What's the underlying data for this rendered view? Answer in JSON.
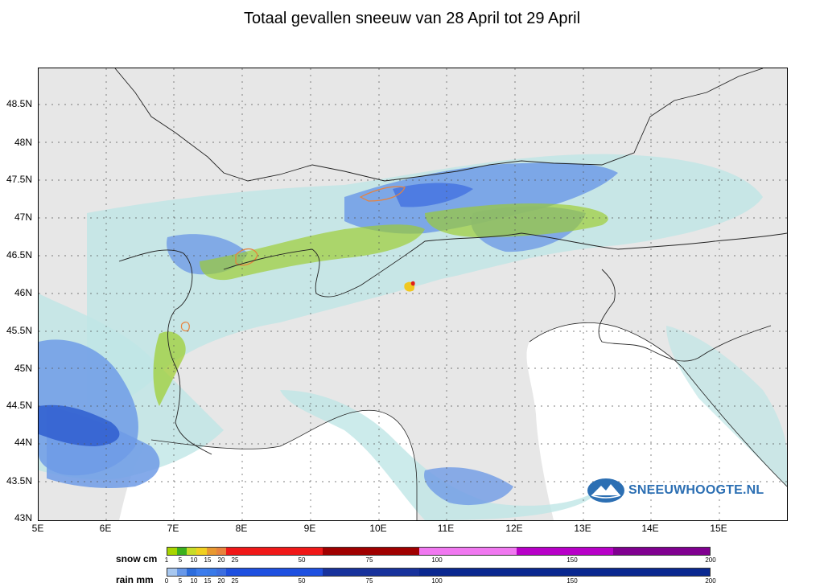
{
  "title": "Totaal gevallen sneeuw van 28 April tot 29 April",
  "latitude_labels": [
    "48.5N",
    "48N",
    "47.5N",
    "47N",
    "46.5N",
    "46N",
    "45.5N",
    "45N",
    "44.5N",
    "44N",
    "43.5N",
    "43N"
  ],
  "longitude_labels": [
    "5E",
    "6E",
    "7E",
    "8E",
    "9E",
    "10E",
    "11E",
    "12E",
    "13E",
    "14E",
    "15E"
  ],
  "brand": "SNEEUWHOOGTE.NL",
  "legend": {
    "snow_label": "snow cm",
    "rain_label": "rain mm",
    "snow_ticks": [
      "1",
      "5",
      "10",
      "15",
      "20",
      "25",
      "50",
      "75",
      "100",
      "150",
      "200"
    ],
    "rain_ticks": [
      "0",
      "5",
      "10",
      "15",
      "20",
      "25",
      "50",
      "75",
      "100",
      "150",
      "200"
    ],
    "snow_colors": [
      "#a8d400",
      "#3cb01e",
      "#c8dc28",
      "#f0d020",
      "#e89830",
      "#e8823c",
      "#f01818",
      "#f01818",
      "#a00000",
      "#a00000",
      "#f078f0",
      "#f078f0",
      "#b800c8",
      "#b800c8",
      "#800090",
      "#800090"
    ],
    "rain_colors": [
      "#a8c8f0",
      "#6898e8",
      "#2c6cdc",
      "#3c7cec",
      "#3a7ae8",
      "#3c6ee0",
      "#1e50e0",
      "#1e50e0",
      "#18329c",
      "#18329c",
      "#0a2890",
      "#0a2890",
      "#0a2890",
      "#0a2890",
      "#0a2890",
      "#0a2890"
    ]
  }
}
